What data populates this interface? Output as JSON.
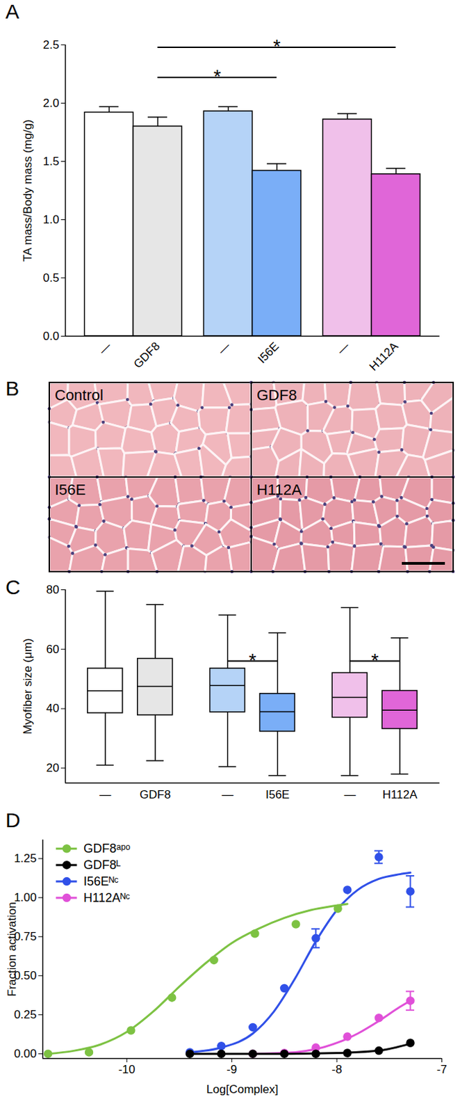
{
  "chart_data": [
    {
      "type": "bar",
      "title": "A",
      "ylabel": "TA mass/Body mass (mg/g)",
      "categories": [
        "—",
        "GDF8",
        "—",
        "I56E",
        "—",
        "H112A"
      ],
      "values": [
        1.92,
        1.8,
        1.93,
        1.42,
        1.86,
        1.39
      ],
      "errors": [
        0.05,
        0.08,
        0.04,
        0.06,
        0.05,
        0.05
      ],
      "colors": [
        "#ffffff",
        "#e6e6e6",
        "#b5d3f7",
        "#7aaef7",
        "#f0c0ea",
        "#e066d8"
      ],
      "ylim": [
        0,
        2.5
      ],
      "yticks": [
        {
          "value": 0,
          "label": "0.0"
        },
        0.5,
        {
          "value": 1,
          "label": "1.0"
        },
        1.5,
        {
          "value": 2,
          "label": "2.0"
        },
        2.5
      ],
      "annotations": [
        {
          "label": "*",
          "from": 1,
          "to": 3,
          "y": 2.22
        },
        {
          "label": "*",
          "from": 1,
          "to": 5,
          "y": 2.48
        }
      ]
    },
    {
      "type": "image",
      "title": "B",
      "panels": [
        "Control",
        "GDF8",
        "I56E",
        "H112A"
      ]
    },
    {
      "type": "box",
      "title": "C",
      "ylabel": "Myofiber size (μm)",
      "categories": [
        "—",
        "GDF8",
        "—",
        "I56E",
        "—",
        "H112A"
      ],
      "boxes": [
        {
          "min": 21,
          "q1": 38.5,
          "median": 46,
          "q3": 53.5,
          "max": 79.5
        },
        {
          "min": 22.5,
          "q1": 37.8,
          "median": 47.5,
          "q3": 56.8,
          "max": 75
        },
        {
          "min": 20.5,
          "q1": 38.8,
          "median": 47.8,
          "q3": 53.5,
          "max": 71.5
        },
        {
          "min": 17.5,
          "q1": 32.3,
          "median": 39,
          "q3": 45,
          "max": 65.5
        },
        {
          "min": 17.5,
          "q1": 37,
          "median": 43.8,
          "q3": 52,
          "max": 74
        },
        {
          "min": 18,
          "q1": 33.2,
          "median": 39.5,
          "q3": 46,
          "max": 63.8
        }
      ],
      "colors": [
        "#ffffff",
        "#e6e6e6",
        "#b5d3f7",
        "#7aaef7",
        "#f0c0ea",
        "#e066d8"
      ],
      "ylim": [
        15,
        80
      ],
      "yticks": [
        20,
        40,
        60,
        80
      ],
      "annotations": [
        {
          "label": "*",
          "from": 2,
          "to": 3,
          "y": 56
        },
        {
          "label": "*",
          "from": 4,
          "to": 5,
          "y": 56
        }
      ]
    },
    {
      "type": "line",
      "title": "D",
      "xlabel": "Log[Complex]",
      "ylabel": "Fraction activation",
      "xlim": [
        -10.8,
        -7
      ],
      "xticks": [
        -10,
        -9,
        -8,
        -7
      ],
      "ylim": [
        -0.03,
        1.37
      ],
      "yticks": [
        {
          "value": 0,
          "label": "0.00"
        },
        0.25,
        {
          "value": 0.5,
          "label": "0.50"
        },
        0.75,
        {
          "value": 1,
          "label": "1.00"
        },
        1.25
      ],
      "legend": "top-left",
      "series": [
        {
          "name": "GDF8ᵃᵖᵒ",
          "color": "#7dc243",
          "marker": "circle",
          "x": [
            -10.75,
            -10.36,
            -9.96,
            -9.57,
            -9.17,
            -8.78,
            -8.39,
            -7.99
          ],
          "values": [
            0.0,
            0.01,
            0.15,
            0.36,
            0.6,
            0.77,
            0.83,
            0.93
          ],
          "errors": [
            null,
            null,
            null,
            null,
            null,
            null,
            null,
            null
          ],
          "fit_x": [
            -10.75,
            -10.5,
            -10.25,
            -10,
            -9.75,
            -9.5,
            -9.25,
            -9,
            -8.75,
            -8.5,
            -8.25,
            -8,
            -7.9
          ],
          "fit_values": [
            0.0,
            0.02,
            0.06,
            0.14,
            0.27,
            0.43,
            0.58,
            0.71,
            0.8,
            0.87,
            0.92,
            0.95,
            0.96
          ]
        },
        {
          "name": "GDF8ᴸ",
          "color": "#000000",
          "marker": "circle",
          "x": [
            -9.4,
            -9.1,
            -8.8,
            -8.5,
            -8.2,
            -7.9,
            -7.6,
            -7.3
          ],
          "values": [
            0.0,
            0.0,
            0.0,
            0.0,
            0.0,
            0.005,
            0.02,
            0.07
          ],
          "errors": [
            null,
            null,
            null,
            null,
            null,
            null,
            null,
            null
          ],
          "fit_x": [
            -9.4,
            -8.5,
            -8.0,
            -7.6,
            -7.3
          ],
          "fit_values": [
            0.0,
            0.0,
            0.005,
            0.02,
            0.065
          ]
        },
        {
          "name": "I56Eᴺᶜ",
          "color": "#3050e8",
          "marker": "circle",
          "x": [
            -9.4,
            -9.1,
            -8.8,
            -8.5,
            -8.2,
            -7.9,
            -7.6,
            -7.3
          ],
          "values": [
            0.01,
            0.05,
            0.17,
            0.42,
            0.74,
            1.05,
            1.26,
            1.04
          ],
          "errors": [
            null,
            null,
            null,
            null,
            0.06,
            null,
            0.04,
            0.1
          ],
          "fit_x": [
            -9.4,
            -9.1,
            -8.8,
            -8.6,
            -8.4,
            -8.2,
            -8.0,
            -7.8,
            -7.6,
            -7.4,
            -7.3
          ],
          "fit_values": [
            0.01,
            0.04,
            0.13,
            0.27,
            0.48,
            0.72,
            0.92,
            1.05,
            1.12,
            1.15,
            1.16
          ]
        },
        {
          "name": "H112Aᴺᶜ",
          "color": "#e050d8",
          "marker": "circle",
          "x": [
            -8.8,
            -8.5,
            -8.2,
            -7.9,
            -7.6,
            -7.3
          ],
          "values": [
            0.0,
            0.005,
            0.04,
            0.11,
            0.23,
            0.34
          ],
          "errors": [
            null,
            null,
            null,
            null,
            null,
            0.06
          ],
          "fit_x": [
            -8.8,
            -8.4,
            -8.2,
            -8.0,
            -7.8,
            -7.6,
            -7.4,
            -7.3
          ],
          "fit_values": [
            0.0,
            0.01,
            0.03,
            0.07,
            0.13,
            0.21,
            0.3,
            0.34
          ]
        }
      ]
    }
  ]
}
